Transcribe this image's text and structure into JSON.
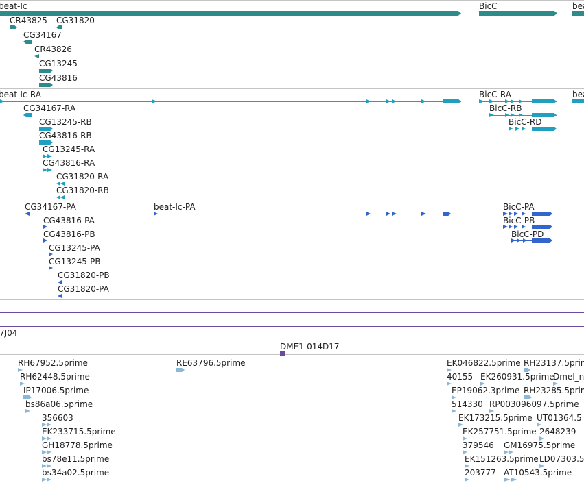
{
  "colors": {
    "gene": "#2e8b8b",
    "mrna": "#1fa0c0",
    "protein": "#3366cc",
    "clone_line": "#6a4c9c",
    "est": "#8cb8d8",
    "border": "#c4c4c4"
  },
  "gene_track": {
    "labels": [
      "beat-Ic",
      "BicC",
      "beat",
      "CR43825",
      "CG31820",
      "CG34167",
      "CR43826",
      "CG13245",
      "CG43816"
    ]
  },
  "transcript_track": {
    "labels": [
      "beat-Ic-RA",
      "BicC-RA",
      "beat",
      "BicC-RB",
      "BicC-RD",
      "CG34167-RA",
      "CG13245-RB",
      "CG43816-RB",
      "CG13245-RA",
      "CG43816-RA",
      "CG31820-RA",
      "CG31820-RB"
    ]
  },
  "protein_track": {
    "labels": [
      "CG34167-PA",
      "beat-Ic-PA",
      "BicC-PA",
      "BicC-PB",
      "BicC-PD",
      "CG43816-PA",
      "CG43816-PB",
      "CG13245-PA",
      "CG13245-PB",
      "CG31820-PB",
      "CG31820-PA"
    ]
  },
  "clone_track": {
    "labels": [
      "7J04",
      "DME1-014D17"
    ]
  },
  "est_track": {
    "labels": [
      "RH67952.5prime",
      "RE63796.5prime",
      "EK046822.5prime",
      "RH23137.5prim",
      "RH62448.5prime",
      "40155",
      "EK260931.5prime",
      "Dmel_n",
      "IP17006.5prime",
      "EP19062.3prime",
      "RH23285.5prime",
      "bs86a06.5prime",
      "514330",
      "RP003096097.5prime",
      "356603",
      "EK173215.5prime",
      "UT01364.5",
      "EK233715.5prime",
      "EK257751.5prime",
      "2648239",
      "GH18778.5prime",
      "379546",
      "GM16975.5prime",
      "bs78e11.5prime",
      "EK151263.5prime",
      "LD07303.5",
      "bs34a02.5prime",
      "203777",
      "AT10543.5prime"
    ]
  }
}
